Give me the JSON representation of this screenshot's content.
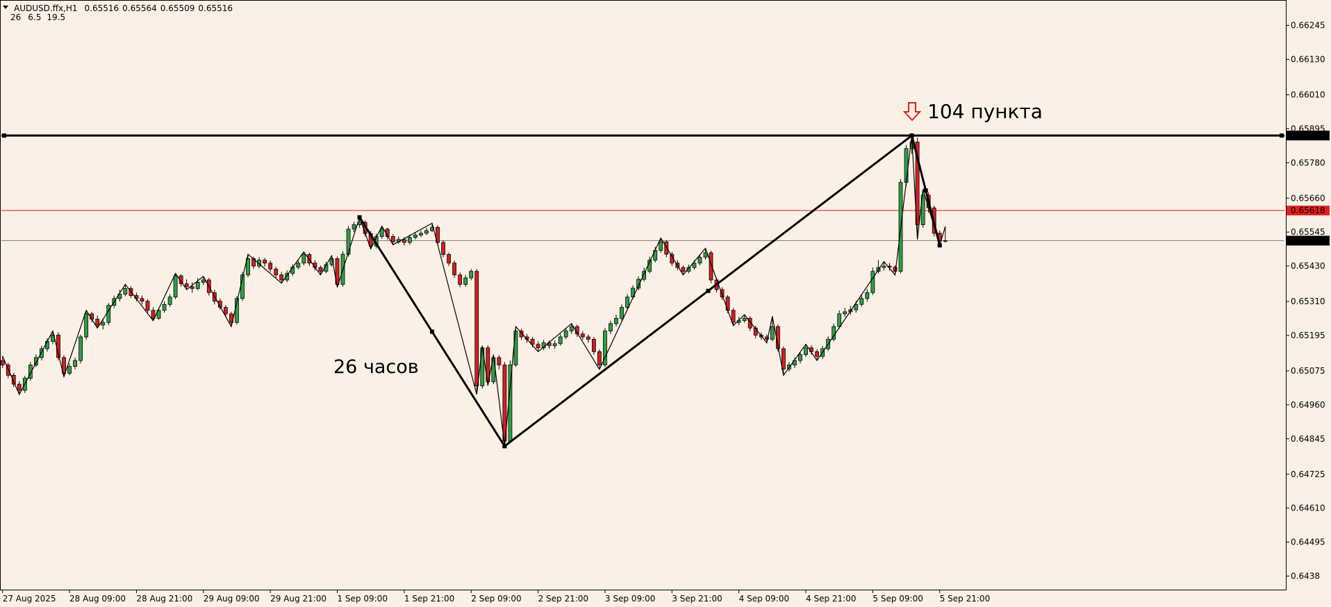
{
  "header": {
    "symbol": "AUDUSD.ffx,H1",
    "ohlc": [
      0.65516,
      0.65564,
      0.65509,
      0.65516
    ],
    "indicator": [
      26,
      6.5,
      19.5
    ]
  },
  "chart_data": {
    "type": "candlestick",
    "up_color": "#2ea043",
    "down_color": "#d42020",
    "xlim": [
      -0.46,
      230.05
    ],
    "ylim": [
      0.64334,
      0.66331
    ],
    "xticks": [
      {
        "value": 0,
        "label": "27 Aug 2025"
      },
      {
        "value": 12,
        "label": "28 Aug 09:00"
      },
      {
        "value": 24,
        "label": "28 Aug 21:00"
      },
      {
        "value": 36,
        "label": "29 Aug 09:00"
      },
      {
        "value": 48,
        "label": "29 Aug 21:00"
      },
      {
        "value": 60,
        "label": "1 Sep 09:00"
      },
      {
        "value": 72,
        "label": "1 Sep 21:00"
      },
      {
        "value": 84,
        "label": "2 Sep 09:00"
      },
      {
        "value": 96,
        "label": "2 Sep 21:00"
      },
      {
        "value": 108,
        "label": "3 Sep 09:00"
      },
      {
        "value": 120,
        "label": "3 Sep 21:00"
      },
      {
        "value": 132,
        "label": "4 Sep 09:00"
      },
      {
        "value": 144,
        "label": "4 Sep 21:00"
      },
      {
        "value": 156,
        "label": "5 Sep 09:00"
      },
      {
        "value": 168,
        "label": "5 Sep 21:00"
      }
    ],
    "yticks": [
      0.66245,
      {
        "value": 0.6613,
        "label": "0.66130"
      },
      {
        "value": 0.6601,
        "label": "0.66010"
      },
      0.65895,
      {
        "value": 0.6578,
        "label": "0.65780"
      },
      {
        "value": 0.6566,
        "label": "0.65660"
      },
      0.65545,
      {
        "value": 0.6543,
        "label": "0.65430"
      },
      {
        "value": 0.6531,
        "label": "0.65310"
      },
      0.65195,
      0.65075,
      {
        "value": 0.6496,
        "label": "0.64960"
      },
      0.64845,
      0.64725,
      {
        "value": 0.6461,
        "label": "0.64610"
      },
      0.64495,
      0.6438
    ],
    "levels": [
      {
        "value": 0.65872,
        "color": "#000000"
      },
      {
        "value": 0.65618,
        "color": "#e02020"
      },
      {
        "value": 0.65516,
        "color": "#808080"
      }
    ],
    "ohlc": [
      [
        0.6511,
        0.65125,
        0.65085,
        0.65095
      ],
      [
        0.65095,
        0.65102,
        0.6505,
        0.6506
      ],
      [
        0.6506,
        0.65068,
        0.6502,
        0.6503
      ],
      [
        0.6503,
        0.6504,
        0.64995,
        0.65009
      ],
      [
        0.65009,
        0.65058,
        0.65,
        0.6505
      ],
      [
        0.6505,
        0.65105,
        0.65042,
        0.65095
      ],
      [
        0.65095,
        0.6513,
        0.65088,
        0.6512
      ],
      [
        0.6512,
        0.6516,
        0.6511,
        0.6515
      ],
      [
        0.6515,
        0.65185,
        0.6514,
        0.65175
      ],
      [
        0.65175,
        0.6521,
        0.65165,
        0.65196
      ],
      [
        0.65196,
        0.65205,
        0.6511,
        0.6512
      ],
      [
        0.6512,
        0.65128,
        0.65055,
        0.65067
      ],
      [
        0.65067,
        0.651,
        0.6506,
        0.6509
      ],
      [
        0.6509,
        0.6512,
        0.6508,
        0.6511
      ],
      [
        0.6511,
        0.65198,
        0.651,
        0.6519
      ],
      [
        0.6519,
        0.6528,
        0.6518,
        0.65268
      ],
      [
        0.65268,
        0.65275,
        0.6524,
        0.6525
      ],
      [
        0.6525,
        0.65262,
        0.6522,
        0.6523
      ],
      [
        0.6523,
        0.6525,
        0.65215,
        0.65239
      ],
      [
        0.65239,
        0.65305,
        0.6523,
        0.65297
      ],
      [
        0.65297,
        0.6533,
        0.65288,
        0.6532
      ],
      [
        0.6532,
        0.6535,
        0.6531,
        0.65335
      ],
      [
        0.65335,
        0.65368,
        0.65328,
        0.65354
      ],
      [
        0.65354,
        0.65362,
        0.65322,
        0.6533
      ],
      [
        0.6533,
        0.6534,
        0.6531,
        0.6532
      ],
      [
        0.6532,
        0.6533,
        0.653,
        0.65311
      ],
      [
        0.65311,
        0.65318,
        0.6527,
        0.6528
      ],
      [
        0.6528,
        0.6529,
        0.65245,
        0.65253
      ],
      [
        0.65253,
        0.65288,
        0.65248,
        0.6528
      ],
      [
        0.6528,
        0.6531,
        0.65272,
        0.653
      ],
      [
        0.653,
        0.65335,
        0.65292,
        0.65325
      ],
      [
        0.65325,
        0.65405,
        0.65318,
        0.65397
      ],
      [
        0.65397,
        0.65402,
        0.6536,
        0.6537
      ],
      [
        0.6537,
        0.65385,
        0.6535,
        0.6536
      ],
      [
        0.6536,
        0.65375,
        0.6534,
        0.65354
      ],
      [
        0.65354,
        0.6539,
        0.65348,
        0.65375
      ],
      [
        0.65375,
        0.65395,
        0.65365,
        0.65383
      ],
      [
        0.65383,
        0.6539,
        0.6533,
        0.6534
      ],
      [
        0.6534,
        0.6535,
        0.653,
        0.65311
      ],
      [
        0.65311,
        0.6532,
        0.65282,
        0.6529
      ],
      [
        0.6529,
        0.65298,
        0.65258,
        0.65268
      ],
      [
        0.65268,
        0.65275,
        0.65225,
        0.65239
      ],
      [
        0.65239,
        0.65328,
        0.65232,
        0.6532
      ],
      [
        0.6532,
        0.6541,
        0.65312,
        0.654
      ],
      [
        0.654,
        0.6547,
        0.65392,
        0.65455
      ],
      [
        0.65455,
        0.65462,
        0.6542,
        0.6543
      ],
      [
        0.6543,
        0.6546,
        0.65422,
        0.6545
      ],
      [
        0.6545,
        0.65458,
        0.65428,
        0.6544
      ],
      [
        0.6544,
        0.65448,
        0.6541,
        0.6542
      ],
      [
        0.6542,
        0.65428,
        0.6539,
        0.654
      ],
      [
        0.654,
        0.6541,
        0.65372,
        0.65383
      ],
      [
        0.65383,
        0.65415,
        0.65375,
        0.65405
      ],
      [
        0.65405,
        0.65436,
        0.65396,
        0.65426
      ],
      [
        0.65426,
        0.65452,
        0.65418,
        0.6544
      ],
      [
        0.6544,
        0.65478,
        0.65432,
        0.65469
      ],
      [
        0.65469,
        0.65475,
        0.6543,
        0.6544
      ],
      [
        0.6544,
        0.6545,
        0.65415,
        0.65425
      ],
      [
        0.65425,
        0.65432,
        0.654,
        0.65412
      ],
      [
        0.65412,
        0.65445,
        0.65405,
        0.65435
      ],
      [
        0.65435,
        0.65465,
        0.65428,
        0.65455
      ],
      [
        0.65455,
        0.65462,
        0.65358,
        0.65368
      ],
      [
        0.65368,
        0.6548,
        0.6536,
        0.6547
      ],
      [
        0.6547,
        0.65565,
        0.65462,
        0.65555
      ],
      [
        0.65555,
        0.6558,
        0.65545,
        0.6557
      ],
      [
        0.6557,
        0.65595,
        0.6556,
        0.65578
      ],
      [
        0.65578,
        0.65585,
        0.6553,
        0.6554
      ],
      [
        0.6554,
        0.65548,
        0.65488,
        0.65498
      ],
      [
        0.65498,
        0.6554,
        0.6549,
        0.6553
      ],
      [
        0.6553,
        0.65565,
        0.65522,
        0.65555
      ],
      [
        0.65555,
        0.6556,
        0.6552,
        0.6553
      ],
      [
        0.6553,
        0.65538,
        0.65502,
        0.65512
      ],
      [
        0.65512,
        0.6553,
        0.65505,
        0.6552
      ],
      [
        0.6552,
        0.65528,
        0.655,
        0.6551
      ],
      [
        0.6551,
        0.65537,
        0.65502,
        0.65527
      ],
      [
        0.65527,
        0.65545,
        0.6552,
        0.65535
      ],
      [
        0.65535,
        0.6555,
        0.65528,
        0.65541
      ],
      [
        0.65541,
        0.6556,
        0.65535,
        0.6555
      ],
      [
        0.6555,
        0.65575,
        0.65545,
        0.65561
      ],
      [
        0.65561,
        0.65568,
        0.655,
        0.6551
      ],
      [
        0.6551,
        0.65518,
        0.6546,
        0.65469
      ],
      [
        0.65469,
        0.65476,
        0.6543,
        0.6544
      ],
      [
        0.6544,
        0.65448,
        0.6539,
        0.654
      ],
      [
        0.654,
        0.65408,
        0.65358,
        0.65368
      ],
      [
        0.65368,
        0.654,
        0.6536,
        0.6539
      ],
      [
        0.6539,
        0.6542,
        0.65382,
        0.65412
      ],
      [
        0.65412,
        0.6542,
        0.64995,
        0.65024
      ],
      [
        0.65024,
        0.6516,
        0.65015,
        0.65153
      ],
      [
        0.65153,
        0.65162,
        0.65025,
        0.65038
      ],
      [
        0.65038,
        0.6513,
        0.6503,
        0.6512
      ],
      [
        0.6512,
        0.65128,
        0.6508,
        0.65095
      ],
      [
        0.65095,
        0.65105,
        0.6482,
        0.64837
      ],
      [
        0.64837,
        0.6511,
        0.6483,
        0.65095
      ],
      [
        0.65095,
        0.65225,
        0.65088,
        0.6521
      ],
      [
        0.6521,
        0.65218,
        0.6518,
        0.6519
      ],
      [
        0.6519,
        0.652,
        0.6517,
        0.65182
      ],
      [
        0.65182,
        0.6519,
        0.65155,
        0.65165
      ],
      [
        0.65165,
        0.65175,
        0.6514,
        0.65153
      ],
      [
        0.65153,
        0.6518,
        0.65145,
        0.6517
      ],
      [
        0.6517,
        0.65178,
        0.6515,
        0.6516
      ],
      [
        0.6516,
        0.65178,
        0.6515,
        0.65167
      ],
      [
        0.65167,
        0.652,
        0.6516,
        0.6519
      ],
      [
        0.6519,
        0.6522,
        0.65182,
        0.6521
      ],
      [
        0.6521,
        0.65235,
        0.652,
        0.65225
      ],
      [
        0.65225,
        0.65232,
        0.6519,
        0.652
      ],
      [
        0.652,
        0.6521,
        0.6518,
        0.6519
      ],
      [
        0.6519,
        0.65198,
        0.6517,
        0.65182
      ],
      [
        0.65182,
        0.6519,
        0.6513,
        0.6514
      ],
      [
        0.6514,
        0.65148,
        0.6508,
        0.65095
      ],
      [
        0.65095,
        0.6522,
        0.65088,
        0.6521
      ],
      [
        0.6521,
        0.65245,
        0.652,
        0.65235
      ],
      [
        0.65235,
        0.65265,
        0.65225,
        0.65253
      ],
      [
        0.65253,
        0.653,
        0.65245,
        0.6529
      ],
      [
        0.6529,
        0.65335,
        0.65282,
        0.65325
      ],
      [
        0.65325,
        0.65365,
        0.65318,
        0.65355
      ],
      [
        0.65355,
        0.65395,
        0.65348,
        0.65385
      ],
      [
        0.65385,
        0.65425,
        0.65378,
        0.65412
      ],
      [
        0.65412,
        0.65462,
        0.65405,
        0.6545
      ],
      [
        0.6545,
        0.65495,
        0.65442,
        0.65483
      ],
      [
        0.65483,
        0.65525,
        0.65475,
        0.65512
      ],
      [
        0.65512,
        0.65518,
        0.6546,
        0.6547
      ],
      [
        0.6547,
        0.65478,
        0.6543,
        0.6544
      ],
      [
        0.6544,
        0.6545,
        0.65415,
        0.65425
      ],
      [
        0.65425,
        0.65432,
        0.654,
        0.65412
      ],
      [
        0.65412,
        0.65435,
        0.65405,
        0.65425
      ],
      [
        0.65425,
        0.6545,
        0.65418,
        0.6544
      ],
      [
        0.6544,
        0.6547,
        0.65432,
        0.6546
      ],
      [
        0.6546,
        0.6549,
        0.65452,
        0.65475
      ],
      [
        0.65475,
        0.65482,
        0.65372,
        0.65383
      ],
      [
        0.65383,
        0.6539,
        0.6534,
        0.6535
      ],
      [
        0.6535,
        0.65358,
        0.65315,
        0.65325
      ],
      [
        0.65325,
        0.65332,
        0.6527,
        0.6528
      ],
      [
        0.6528,
        0.65288,
        0.65228,
        0.65239
      ],
      [
        0.65239,
        0.65258,
        0.6523,
        0.65245
      ],
      [
        0.65245,
        0.65265,
        0.65238,
        0.65253
      ],
      [
        0.65253,
        0.6526,
        0.6521,
        0.6522
      ],
      [
        0.6522,
        0.65228,
        0.65185,
        0.65196
      ],
      [
        0.65196,
        0.65205,
        0.6518,
        0.6519
      ],
      [
        0.6519,
        0.65198,
        0.6517,
        0.65182
      ],
      [
        0.65182,
        0.6526,
        0.65175,
        0.65225
      ],
      [
        0.65225,
        0.65232,
        0.6514,
        0.6515
      ],
      [
        0.6515,
        0.65158,
        0.6506,
        0.65081
      ],
      [
        0.65081,
        0.65105,
        0.65072,
        0.65095
      ],
      [
        0.65095,
        0.6512,
        0.65085,
        0.6511
      ],
      [
        0.6511,
        0.6514,
        0.651,
        0.6513
      ],
      [
        0.6513,
        0.65165,
        0.65122,
        0.65153
      ],
      [
        0.65153,
        0.65162,
        0.6513,
        0.6514
      ],
      [
        0.6514,
        0.65148,
        0.6511,
        0.65124
      ],
      [
        0.65124,
        0.6516,
        0.65115,
        0.6515
      ],
      [
        0.6515,
        0.65192,
        0.65142,
        0.65182
      ],
      [
        0.65182,
        0.65235,
        0.65175,
        0.65225
      ],
      [
        0.65225,
        0.6528,
        0.65218,
        0.65268
      ],
      [
        0.65268,
        0.65288,
        0.65258,
        0.65275
      ],
      [
        0.65275,
        0.65295,
        0.65265,
        0.65282
      ],
      [
        0.65282,
        0.65312,
        0.65272,
        0.653
      ],
      [
        0.653,
        0.65332,
        0.65292,
        0.6532
      ],
      [
        0.6532,
        0.65352,
        0.6531,
        0.6534
      ],
      [
        0.6534,
        0.65425,
        0.65332,
        0.65412
      ],
      [
        0.65412,
        0.6545,
        0.65405,
        0.65425
      ],
      [
        0.65425,
        0.65445,
        0.65415,
        0.6543
      ],
      [
        0.6543,
        0.6544,
        0.65415,
        0.65426
      ],
      [
        0.65426,
        0.65432,
        0.654,
        0.65412
      ],
      [
        0.65412,
        0.65725,
        0.65405,
        0.65713
      ],
      [
        0.65713,
        0.6584,
        0.657,
        0.65828
      ],
      [
        0.65828,
        0.65872,
        0.6581,
        0.6585
      ],
      [
        0.6585,
        0.65865,
        0.6552,
        0.6557
      ],
      [
        0.6557,
        0.6569,
        0.6556,
        0.6567
      ],
      [
        0.6567,
        0.6568,
        0.6561,
        0.65627
      ],
      [
        0.65627,
        0.65635,
        0.6553,
        0.65541
      ],
      [
        0.65541,
        0.6555,
        0.655,
        0.65516
      ],
      [
        0.65516,
        0.65564,
        0.65509,
        0.65516
      ]
    ],
    "zigzag": [
      [
        0,
        0.65125
      ],
      [
        3,
        0.64995
      ],
      [
        9,
        0.6521
      ],
      [
        11,
        0.65055
      ],
      [
        15,
        0.6528
      ],
      [
        17,
        0.6522
      ],
      [
        22,
        0.65368
      ],
      [
        27,
        0.65245
      ],
      [
        31,
        0.65405
      ],
      [
        33,
        0.6535
      ],
      [
        36,
        0.65395
      ],
      [
        41,
        0.65225
      ],
      [
        44,
        0.6547
      ],
      [
        50,
        0.65372
      ],
      [
        54,
        0.65478
      ],
      [
        57,
        0.654
      ],
      [
        59,
        0.65465
      ],
      [
        60,
        0.65358
      ],
      [
        64,
        0.65595
      ],
      [
        66,
        0.65488
      ],
      [
        68,
        0.65565
      ],
      [
        70,
        0.65502
      ],
      [
        77,
        0.65575
      ],
      [
        85,
        0.64995
      ],
      [
        86,
        0.6516
      ],
      [
        87,
        0.65025
      ],
      [
        88,
        0.6513
      ],
      [
        90,
        0.6482
      ],
      [
        92,
        0.65225
      ],
      [
        96,
        0.6514
      ],
      [
        102,
        0.65235
      ],
      [
        107,
        0.6508
      ],
      [
        118,
        0.65525
      ],
      [
        122,
        0.654
      ],
      [
        126,
        0.6549
      ],
      [
        131,
        0.65228
      ],
      [
        133,
        0.65265
      ],
      [
        137,
        0.6517
      ],
      [
        138,
        0.6526
      ],
      [
        140,
        0.6506
      ],
      [
        144,
        0.65165
      ],
      [
        146,
        0.6511
      ],
      [
        158,
        0.65445
      ],
      [
        160,
        0.654
      ],
      [
        163,
        0.65872
      ],
      [
        164,
        0.6552
      ],
      [
        165,
        0.6569
      ],
      [
        168,
        0.655
      ],
      [
        169,
        0.65564
      ]
    ],
    "trendlines": [
      [
        [
          64,
          0.65595
        ],
        [
          90,
          0.6482
        ]
      ],
      [
        [
          90,
          0.6482
        ],
        [
          163,
          0.65872
        ]
      ],
      [
        [
          163,
          0.65872
        ],
        [
          168,
          0.655
        ]
      ]
    ],
    "annotations": [
      "26 часов",
      "104 пункта"
    ]
  }
}
